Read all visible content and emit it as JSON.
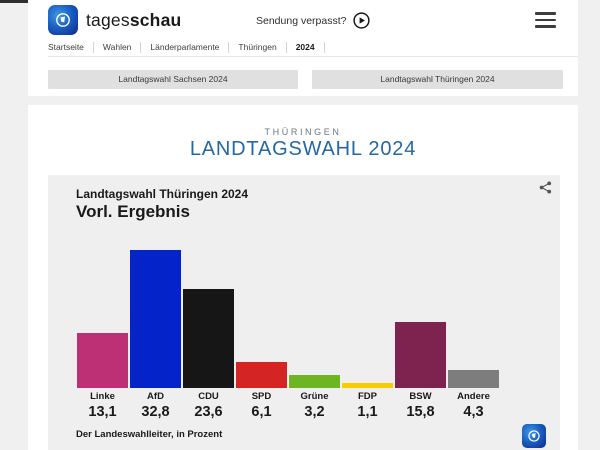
{
  "colors": {
    "accent_blue": "#2368a4",
    "page_bg": "#f0f0f0",
    "card_bg": "#ffffff",
    "chart_bg": "#efefef",
    "button_bg": "#e0e0e0"
  },
  "header": {
    "brand_regular": "tages",
    "brand_bold": "schau",
    "sendung_verpasst_label": "Sendung verpasst?",
    "breadcrumb": [
      "Startseite",
      "Wahlen",
      "Länderparlamente",
      "Thüringen",
      "2024"
    ]
  },
  "election_nav": {
    "buttons": [
      {
        "label": "Landtagswahl Sachsen 2024"
      },
      {
        "label": "Landtagswahl Thüringen 2024"
      }
    ]
  },
  "content": {
    "kicker": "THÜRINGEN",
    "title": "LANDTAGSWAHL 2024"
  },
  "chart": {
    "title": "Landtagswahl Thüringen 2024",
    "subtitle": "Vorl. Ergebnis",
    "source": "Der Landeswahlleiter, in Prozent"
  },
  "chart_data": {
    "type": "bar",
    "title": "Landtagswahl Thüringen 2024 – Vorl. Ergebnis",
    "categories": [
      "Linke",
      "AfD",
      "CDU",
      "SPD",
      "Grüne",
      "FDP",
      "BSW",
      "Andere"
    ],
    "values": [
      13.1,
      32.8,
      23.6,
      6.1,
      3.2,
      1.1,
      15.8,
      4.3
    ],
    "value_labels": [
      "13,1",
      "32,8",
      "23,6",
      "6,1",
      "3,2",
      "1,1",
      "15,8",
      "4,3"
    ],
    "bar_colors": [
      "#be3075",
      "#0423c8",
      "#161616",
      "#d42423",
      "#6eb524",
      "#f8cd00",
      "#7e2350",
      "#7d7d7d"
    ],
    "ylabel": "Prozent",
    "ylim": [
      0,
      34
    ],
    "grid": false,
    "legend": false
  }
}
